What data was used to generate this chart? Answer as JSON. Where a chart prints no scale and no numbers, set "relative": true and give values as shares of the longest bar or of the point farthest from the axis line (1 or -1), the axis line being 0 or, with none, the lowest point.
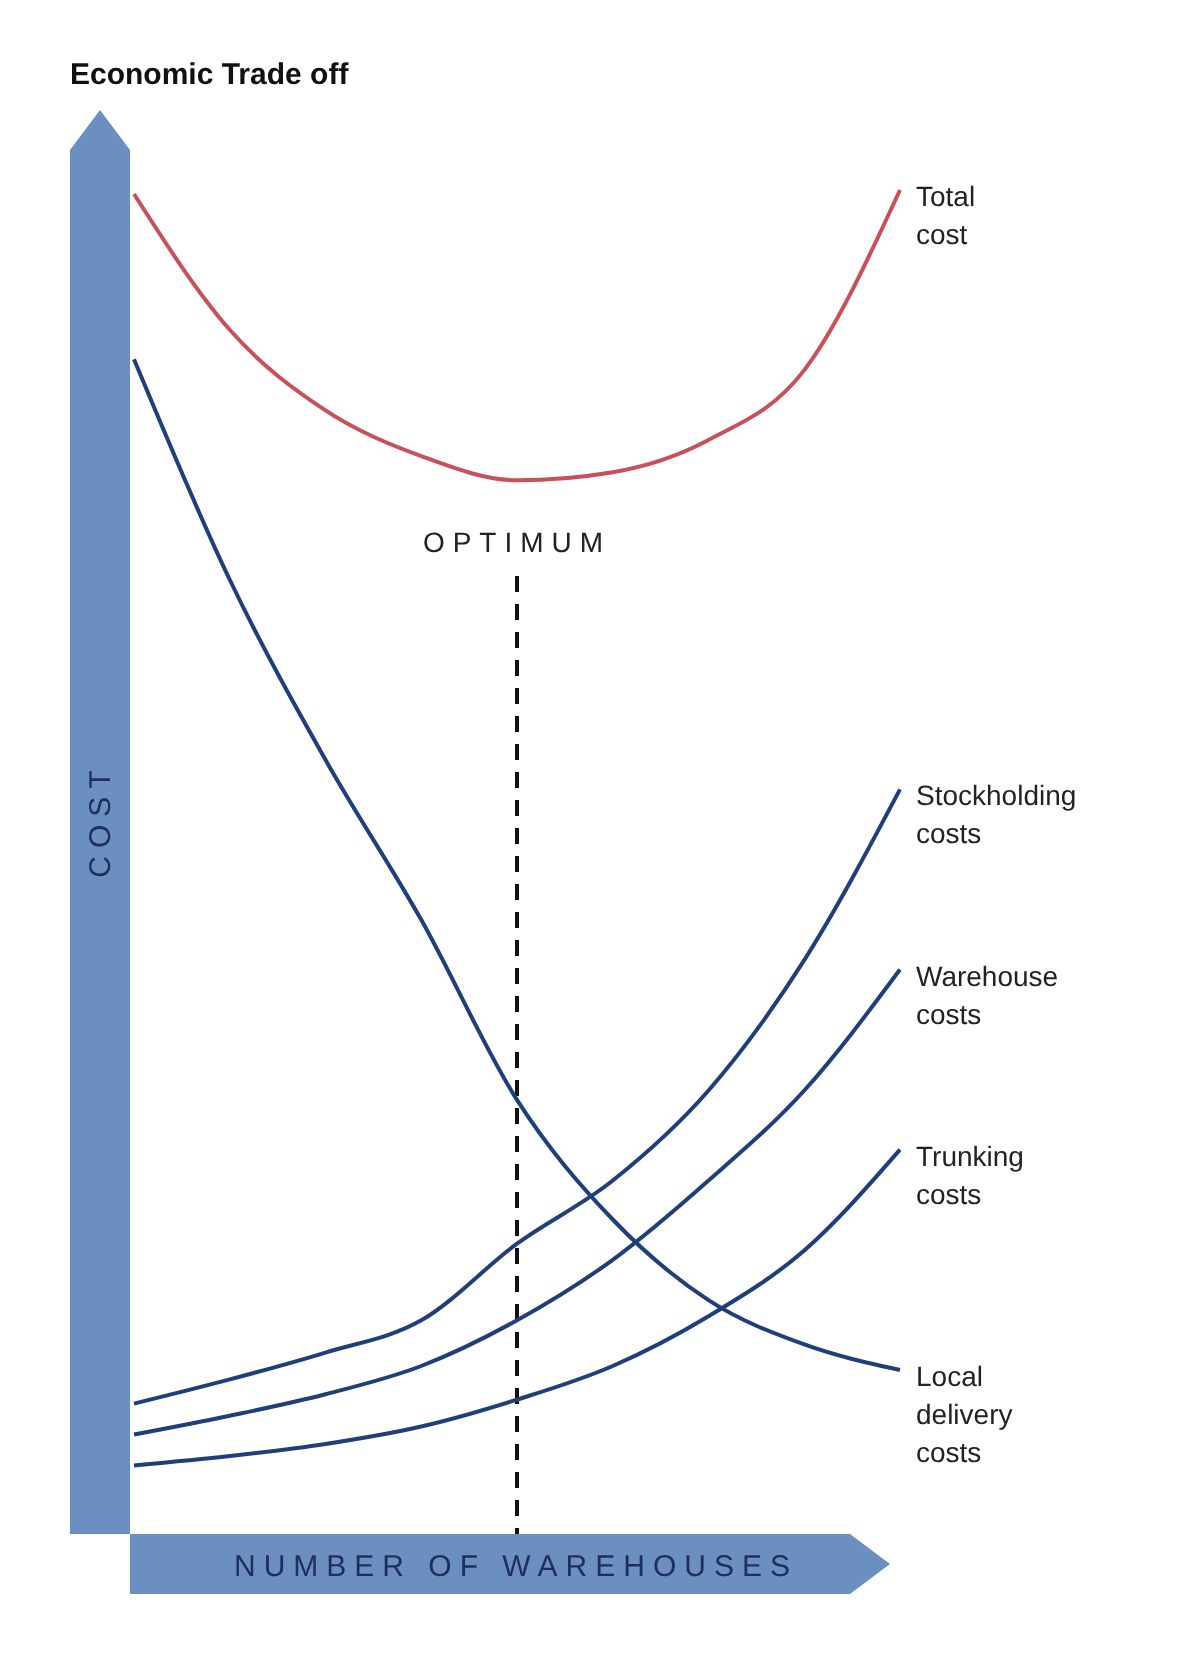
{
  "chart_data": {
    "type": "line",
    "title": "Economic Trade off",
    "xlabel": "NUMBER OF WAREHOUSES",
    "ylabel": "COST",
    "relative": true,
    "categories": [
      null,
      null,
      null,
      null,
      null,
      null,
      null,
      null,
      null
    ],
    "series": [
      {
        "name": "Total cost",
        "color": "#c8505a",
        "values": [
          0.997,
          0.896,
          0.836,
          0.802,
          0.784,
          0.79,
          0.814,
          0.866,
          1
        ]
      },
      {
        "name": "Stockholding costs",
        "color": "#1f3f7a",
        "values": [
          0.097,
          0.115,
          0.135,
          0.159,
          0.216,
          0.263,
          0.33,
          0.427,
          0.554
        ]
      },
      {
        "name": "Warehouse costs",
        "color": "#1f3f7a",
        "values": [
          0.074,
          0.088,
          0.104,
          0.125,
          0.159,
          0.204,
          0.263,
          0.33,
          0.42
        ]
      },
      {
        "name": "Trunking costs",
        "color": "#1f3f7a",
        "values": [
          0.051,
          0.058,
          0.067,
          0.08,
          0.1,
          0.125,
          0.162,
          0.211,
          0.286
        ]
      },
      {
        "name": "Local delivery costs",
        "color": "#1f3f7a",
        "values": [
          0.874,
          0.71,
          0.576,
          0.457,
          0.323,
          0.234,
          0.174,
          0.141,
          0.122
        ]
      }
    ],
    "annotations": [
      "OPTIMUM"
    ],
    "line_style": "solid",
    "marker": "none"
  }
}
